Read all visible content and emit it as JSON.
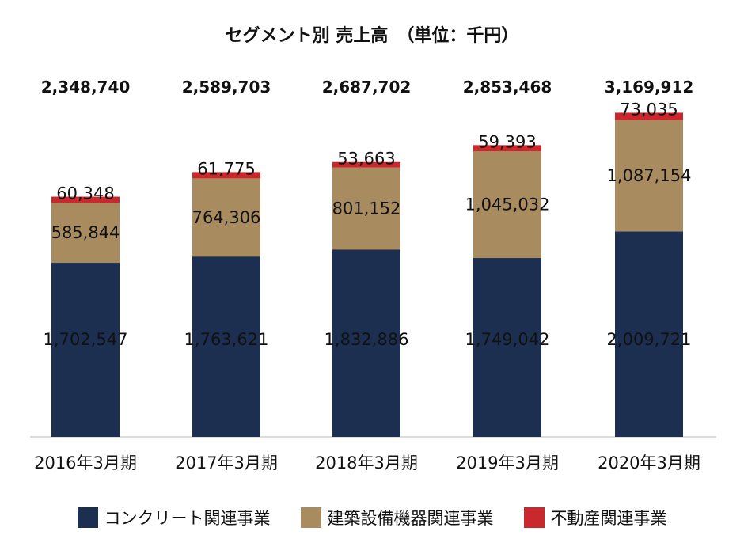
{
  "chart_data": {
    "type": "bar",
    "stacked": true,
    "title": "セグメント別 売上高　（単位：千円）",
    "categories": [
      "2016年3月期",
      "2017年3月期",
      "2018年3月期",
      "2019年3月期",
      "2020年3月期"
    ],
    "series": [
      {
        "name": "コンクリート関連事業",
        "color": "#1c2f50",
        "values": [
          1702547,
          1763621,
          1832886,
          1749042,
          2009721
        ],
        "labels": [
          "1,702,547",
          "1,763,621",
          "1,832,886",
          "1,749,042",
          "2,009,721"
        ]
      },
      {
        "name": "建築設備機器関連事業",
        "color": "#a88b5f",
        "values": [
          585844,
          764306,
          801152,
          1045032,
          1087154
        ],
        "labels": [
          "585,844",
          "764,306",
          "801,152",
          "1,045,032",
          "1,087,154"
        ]
      },
      {
        "name": "不動産関連事業",
        "color": "#c9282d",
        "values": [
          60348,
          61775,
          53663,
          59393,
          73035
        ],
        "labels": [
          "60,348",
          "61,775",
          "53,663",
          "59,393",
          "73,035"
        ]
      }
    ],
    "totals": [
      2348740,
      2589703,
      2687702,
      2853468,
      3169912
    ],
    "total_labels": [
      "2,348,740",
      "2,589,703",
      "2,687,702",
      "2,853,468",
      "3,169,912"
    ],
    "ylim": [
      0,
      3500000
    ],
    "xlabel": "",
    "ylabel": "",
    "grid": false,
    "legend_position": "bottom"
  }
}
